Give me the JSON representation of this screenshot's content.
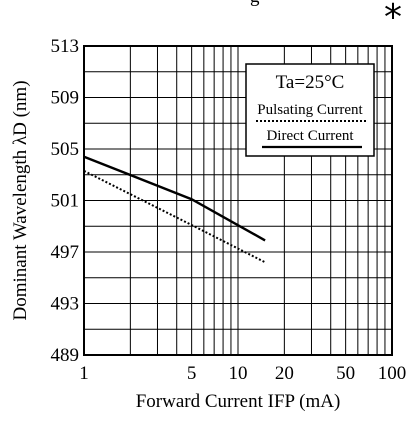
{
  "top_fragment": "g",
  "mark": "*",
  "chart_data": {
    "type": "line",
    "xscale": "log",
    "xlim": [
      1,
      100
    ],
    "ylim": [
      489,
      513
    ],
    "xticks": [
      1,
      5,
      10,
      20,
      50,
      100
    ],
    "xtick_labels": [
      "1",
      "5",
      "10",
      "20",
      "50",
      "100"
    ],
    "yticks": [
      489,
      493,
      497,
      501,
      505,
      509,
      513
    ],
    "ytick_labels": [
      "489",
      "493",
      "497",
      "501",
      "505",
      "509",
      "513"
    ],
    "xlabel": "Forward Current IFP (mA)",
    "ylabel": "Dominant Wavelength λD (nm)",
    "grid": true,
    "legend": {
      "title": "Ta=25°C",
      "placement": "top-right",
      "entries": [
        "Pulsating Current",
        "Direct Current"
      ]
    },
    "series": [
      {
        "name": "Pulsating Current",
        "style": "dotted",
        "x": [
          1,
          5,
          15
        ],
        "y": [
          503.3,
          499.1,
          496.2
        ]
      },
      {
        "name": "Direct Current",
        "style": "solid",
        "x": [
          1,
          5,
          15
        ],
        "y": [
          504.4,
          501.1,
          497.9
        ]
      }
    ]
  }
}
